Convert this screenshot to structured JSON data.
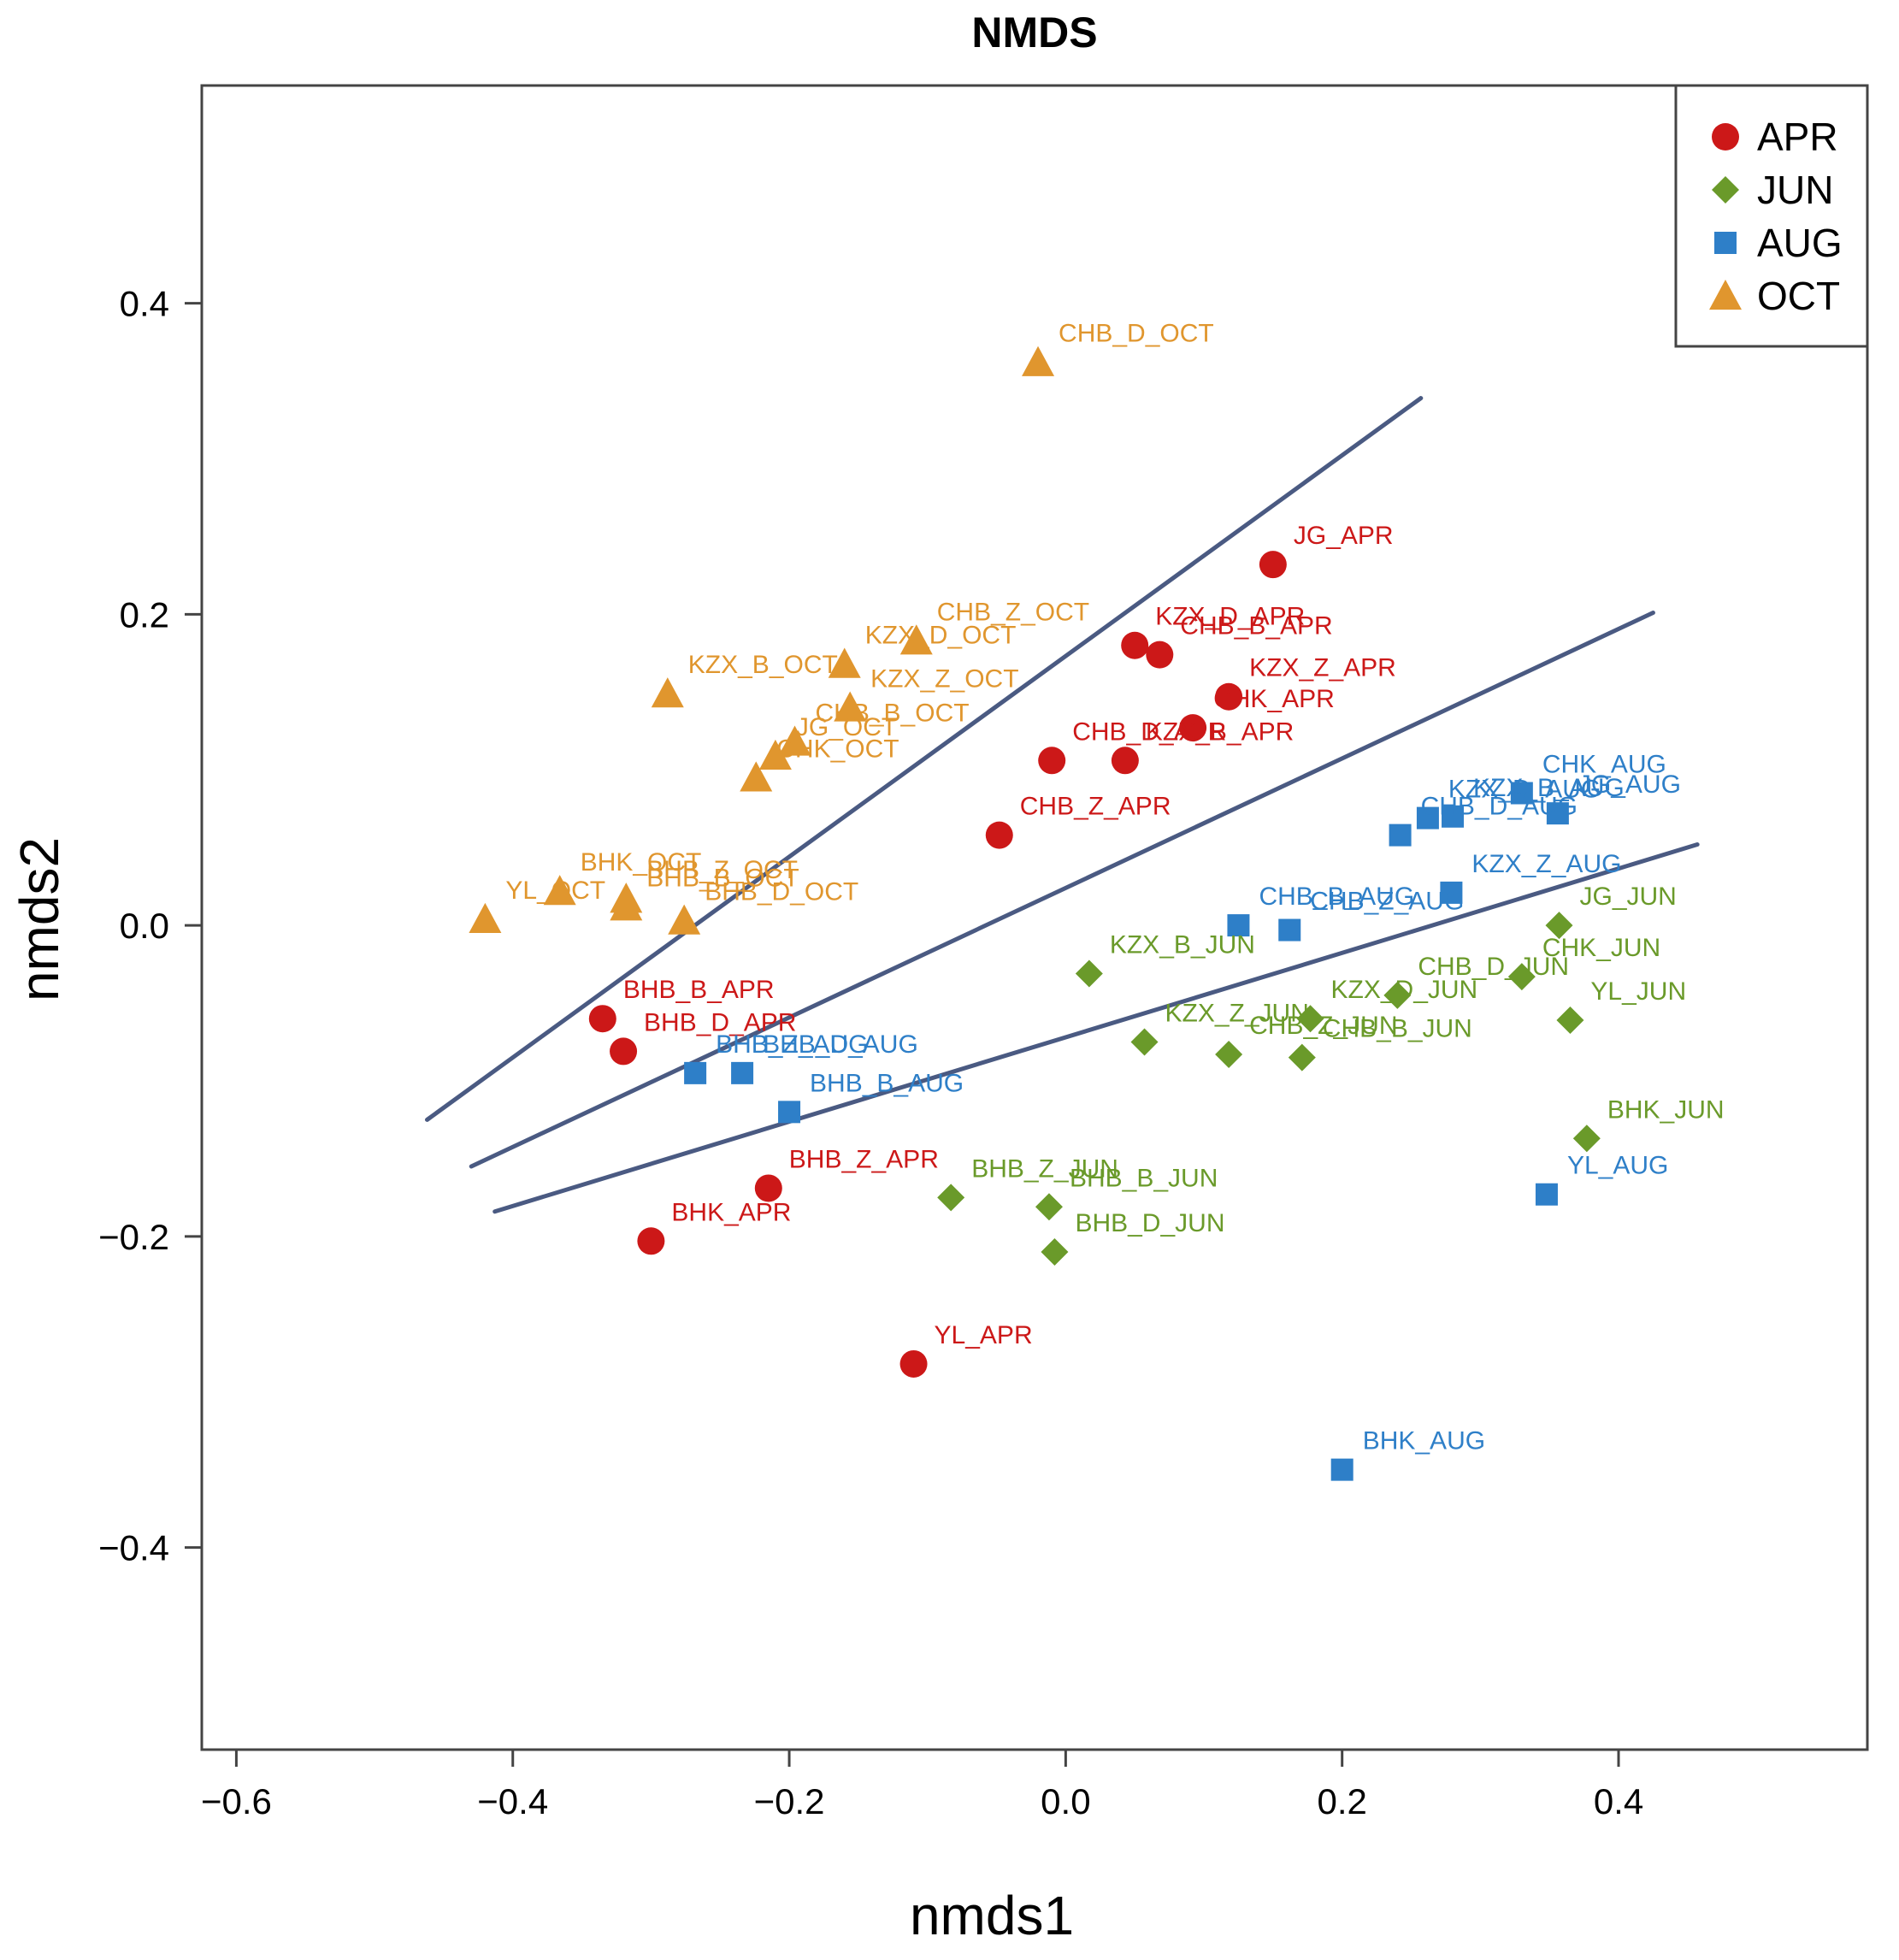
{
  "chart_data": {
    "type": "scatter",
    "title": "NMDS",
    "xlabel": "nmds1",
    "ylabel": "nmds2",
    "xlim": [
      -0.625,
      0.58
    ],
    "ylim": [
      -0.53,
      0.54
    ],
    "xticks": [
      -0.6,
      -0.4,
      -0.2,
      0.0,
      0.2,
      0.4
    ],
    "xtick_labels": [
      "−0.6",
      "−0.4",
      "−0.2",
      "0.0",
      "0.2",
      "0.4"
    ],
    "yticks": [
      -0.4,
      -0.2,
      0.0,
      0.2,
      0.4
    ],
    "ytick_labels": [
      "−0.4",
      "−0.2",
      "0.0",
      "0.2",
      "0.4"
    ],
    "legend_position": "top-right",
    "series": [
      {
        "name": "APR",
        "color": "#cc1818",
        "marker": "circle",
        "points": [
          {
            "label": "JG_APR",
            "x": 0.15,
            "y": 0.232
          },
          {
            "label": "KZX_D_APR",
            "x": 0.05,
            "y": 0.18
          },
          {
            "label": "CHB_B_APR",
            "x": 0.068,
            "y": 0.174
          },
          {
            "label": "KZX_Z_APR",
            "x": 0.118,
            "y": 0.147
          },
          {
            "label": "CHK_APR",
            "x": 0.092,
            "y": 0.127
          },
          {
            "label": "CHB_D_APR",
            "x": -0.01,
            "y": 0.106
          },
          {
            "label": "KZX_B_APR",
            "x": 0.043,
            "y": 0.106
          },
          {
            "label": "CHB_Z_APR",
            "x": -0.048,
            "y": 0.058
          },
          {
            "label": "BHB_B_APR",
            "x": -0.335,
            "y": -0.06
          },
          {
            "label": "BHB_D_APR",
            "x": -0.32,
            "y": -0.081
          },
          {
            "label": "BHB_Z_APR",
            "x": -0.215,
            "y": -0.169
          },
          {
            "label": "BHK_APR",
            "x": -0.3,
            "y": -0.203
          },
          {
            "label": "YL_APR",
            "x": -0.11,
            "y": -0.282
          }
        ]
      },
      {
        "name": "JUN",
        "color": "#6a9a2a",
        "marker": "diamond",
        "points": [
          {
            "label": "JG_JUN",
            "x": 0.357,
            "y": 0.0
          },
          {
            "label": "KZX_B_JUN",
            "x": 0.017,
            "y": -0.031
          },
          {
            "label": "CHB_D_JUN",
            "x": 0.24,
            "y": -0.045
          },
          {
            "label": "CHK_JUN",
            "x": 0.33,
            "y": -0.033
          },
          {
            "label": "KZX_D_JUN",
            "x": 0.177,
            "y": -0.06
          },
          {
            "label": "YL_JUN",
            "x": 0.365,
            "y": -0.061
          },
          {
            "label": "KZX_Z_JUN",
            "x": 0.057,
            "y": -0.075
          },
          {
            "label": "CHB_Z_JUN",
            "x": 0.118,
            "y": -0.083
          },
          {
            "label": "CHB_B_JUN",
            "x": 0.171,
            "y": -0.085
          },
          {
            "label": "BHK_JUN",
            "x": 0.377,
            "y": -0.137
          },
          {
            "label": "BHB_Z_JUN",
            "x": -0.083,
            "y": -0.175
          },
          {
            "label": "BHB_B_JUN",
            "x": -0.012,
            "y": -0.181
          },
          {
            "label": "BHB_D_JUN",
            "x": -0.008,
            "y": -0.21
          }
        ]
      },
      {
        "name": "AUG",
        "color": "#2e7fc8",
        "marker": "square",
        "points": [
          {
            "label": "CHK_AUG",
            "x": 0.33,
            "y": 0.085
          },
          {
            "label": "JG_AUG",
            "x": 0.356,
            "y": 0.072
          },
          {
            "label": "KZX_B_AUG",
            "x": 0.28,
            "y": 0.07
          },
          {
            "label": "KZX_D_AUG",
            "x": 0.262,
            "y": 0.069
          },
          {
            "label": "CHB_D_AUG",
            "x": 0.242,
            "y": 0.058
          },
          {
            "label": "KZX_Z_AUG",
            "x": 0.279,
            "y": 0.021
          },
          {
            "label": "CHB_B_AUG",
            "x": 0.125,
            "y": 0.0
          },
          {
            "label": "CHB_Z_AUG",
            "x": 0.162,
            "y": -0.003
          },
          {
            "label": "BHB_Z_AUG",
            "x": -0.268,
            "y": -0.095
          },
          {
            "label": "BHB_D_AUG",
            "x": -0.234,
            "y": -0.095
          },
          {
            "label": "BHB_B_AUG",
            "x": -0.2,
            "y": -0.12
          },
          {
            "label": "YL_AUG",
            "x": 0.348,
            "y": -0.173
          },
          {
            "label": "BHK_AUG",
            "x": 0.2,
            "y": -0.35
          }
        ]
      },
      {
        "name": "OCT",
        "color": "#e0962e",
        "marker": "triangle",
        "points": [
          {
            "label": "CHB_D_OCT",
            "x": -0.02,
            "y": 0.362
          },
          {
            "label": "CHB_Z_OCT",
            "x": -0.108,
            "y": 0.183
          },
          {
            "label": "KZX_D_OCT",
            "x": -0.16,
            "y": 0.168
          },
          {
            "label": "KZX_Z_OCT",
            "x": -0.156,
            "y": 0.14
          },
          {
            "label": "KZX_B_OCT",
            "x": -0.288,
            "y": 0.149
          },
          {
            "label": "CHB_B_OCT",
            "x": -0.196,
            "y": 0.118
          },
          {
            "label": "JG_OCT",
            "x": -0.21,
            "y": 0.109
          },
          {
            "label": "CHK_OCT",
            "x": -0.224,
            "y": 0.095
          },
          {
            "label": "BHK_OCT",
            "x": -0.366,
            "y": 0.022
          },
          {
            "label": "BHB_Z_OCT",
            "x": -0.318,
            "y": 0.017
          },
          {
            "label": "BHB_B_OCT",
            "x": -0.318,
            "y": 0.012
          },
          {
            "label": "BHB_D_OCT",
            "x": -0.276,
            "y": 0.003
          },
          {
            "label": "YL_OCT",
            "x": -0.42,
            "y": 0.004
          }
        ]
      }
    ],
    "lines": [
      {
        "color": "#4a5a82",
        "x": [
          -0.462,
          0.257
        ],
        "y": [
          -0.125,
          0.339
        ]
      },
      {
        "color": "#4a5a82",
        "x": [
          -0.43,
          0.425
        ],
        "y": [
          -0.155,
          0.201
        ]
      },
      {
        "color": "#4a5a82",
        "x": [
          -0.413,
          0.457
        ],
        "y": [
          -0.184,
          0.052
        ]
      }
    ]
  }
}
